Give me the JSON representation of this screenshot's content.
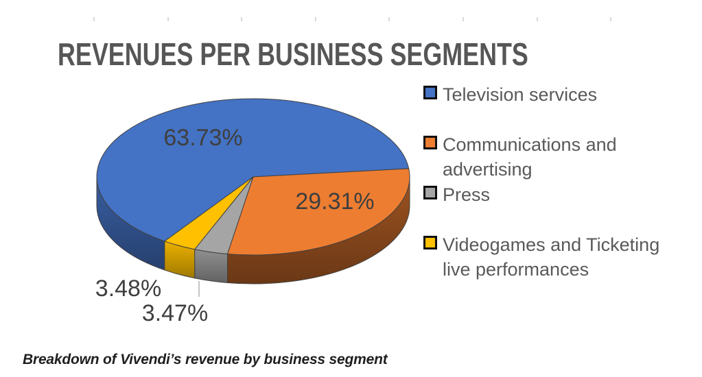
{
  "title": "REVENUES PER BUSINESS SEGMENTS",
  "caption": "Breakdown of Vivendi’s revenue by business segment",
  "chart_data": {
    "type": "pie",
    "style": "3d",
    "title": "REVENUES PER BUSINESS SEGMENTS",
    "legend_position": "right",
    "series": [
      {
        "name": "Television services",
        "value": 63.73,
        "label": "63.73%",
        "color": "#4472C4"
      },
      {
        "name": "Communications and advertising",
        "value": 29.31,
        "label": "29.31%",
        "color": "#ED7D31"
      },
      {
        "name": "Press",
        "value": 3.47,
        "label": "3.47%",
        "color": "#A5A5A5"
      },
      {
        "name": "Videogames and Ticketing live performances",
        "value": 3.48,
        "label": "3.48%",
        "color": "#FFC000"
      }
    ],
    "label_color": "#3f3f3f",
    "legend_text_color": "#595959",
    "title_color": "#565656",
    "outline_color": "#404040",
    "leader_line_color": "#a6a6a6"
  }
}
